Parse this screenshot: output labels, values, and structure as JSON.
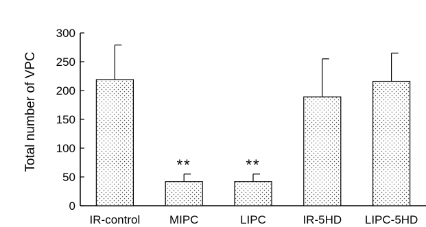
{
  "chart_data": {
    "type": "bar",
    "title": "",
    "xlabel": "",
    "ylabel": "Total number of VPC",
    "ylim": [
      0,
      300
    ],
    "yticks": [
      "0",
      "50",
      "100",
      "150",
      "200",
      "250",
      "300"
    ],
    "categories": [
      "IR-control",
      "MIPC",
      "LIPC",
      "IR-5HD",
      "LIPC-5HD"
    ],
    "series": [
      {
        "values": [
          219,
          42,
          42,
          189,
          216
        ],
        "error": [
          60,
          13,
          13,
          66,
          49
        ]
      }
    ],
    "annotations": [
      "",
      "**",
      "**",
      "",
      ""
    ],
    "bar_fill": "dotted",
    "grid": false,
    "legend": "none"
  }
}
